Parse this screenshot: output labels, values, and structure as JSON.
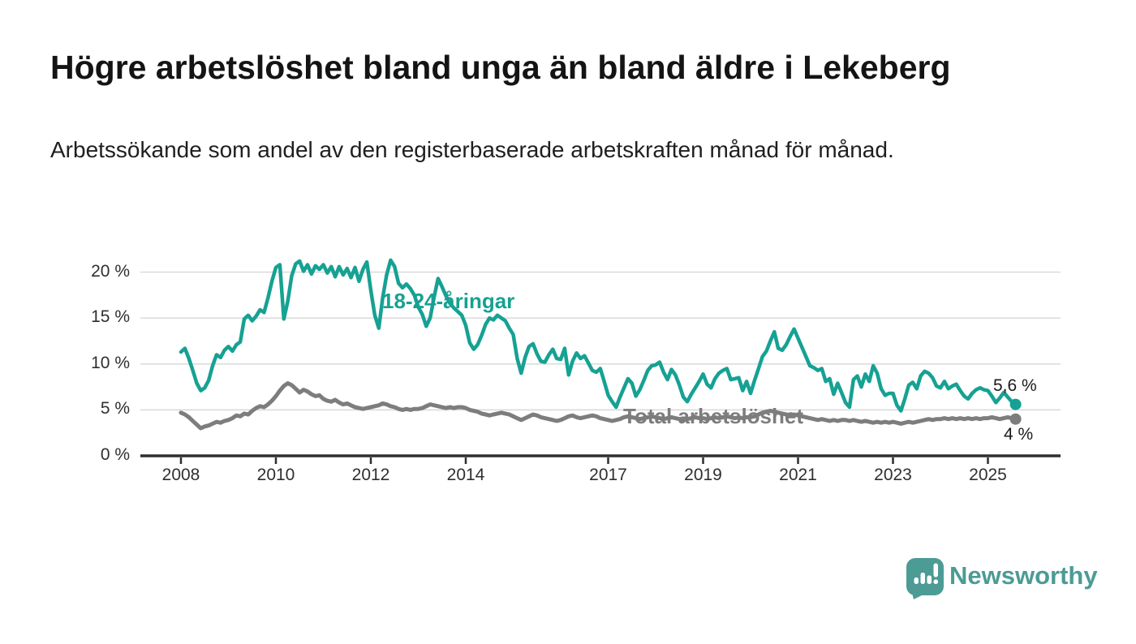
{
  "header": {
    "title": "Högre arbetslöshet bland unga än bland äldre i Lekeberg",
    "subtitle": "Arbetssökande som andel av den registerbaserade arbetskraften månad för månad."
  },
  "chart_data": {
    "type": "line",
    "title": "Högre arbetslöshet bland unga än bland äldre i Lekeberg",
    "x_unit": "month",
    "x_start_year": 2008,
    "points_per_year": 12,
    "x_end_label_period": "2025-08",
    "x_ticks": [
      2008,
      2010,
      2012,
      2014,
      2017,
      2019,
      2021,
      2023,
      2025
    ],
    "x_tick_labels": [
      "2008",
      "2010",
      "2012",
      "2014",
      "2017",
      "2019",
      "2021",
      "2023",
      "2025"
    ],
    "y_ticks": [
      0,
      5,
      10,
      15,
      20
    ],
    "y_tick_labels": [
      "0 %",
      "5 %",
      "10 %",
      "15 %",
      "20 %"
    ],
    "ylim": [
      0,
      22
    ],
    "grid": "horizontal",
    "grid_color": "#d9d9d9",
    "axis_color": "#2e2e2e",
    "legend_position": "inline-labels",
    "series": [
      {
        "name": "18-24-åringar",
        "color": "#16a193",
        "end_label": "5,6 %",
        "end_value": 5.6,
        "values": [
          11.3,
          11.7,
          10.6,
          9.3,
          7.9,
          7.1,
          7.4,
          8.2,
          9.8,
          11.0,
          10.7,
          11.5,
          11.9,
          11.4,
          12.1,
          12.4,
          14.9,
          15.3,
          14.7,
          15.2,
          15.9,
          15.6,
          17.2,
          19.0,
          20.5,
          20.8,
          14.9,
          16.8,
          19.6,
          20.9,
          21.2,
          20.1,
          20.8,
          19.8,
          20.7,
          20.3,
          20.8,
          19.9,
          20.6,
          19.5,
          20.6,
          19.7,
          20.4,
          19.4,
          20.5,
          19.0,
          20.3,
          21.1,
          18.0,
          15.3,
          13.9,
          17.2,
          19.7,
          21.3,
          20.6,
          18.8,
          18.3,
          18.7,
          18.2,
          17.5,
          16.2,
          15.4,
          14.1,
          15.0,
          17.3,
          19.3,
          18.4,
          17.4,
          16.6,
          16.1,
          15.7,
          15.3,
          14.2,
          12.3,
          11.6,
          12.1,
          13.1,
          14.3,
          15.0,
          14.8,
          15.3,
          15.0,
          14.7,
          13.9,
          13.2,
          10.6,
          9.0,
          10.7,
          11.9,
          12.2,
          11.1,
          10.3,
          10.2,
          11.0,
          11.6,
          10.6,
          10.5,
          11.7,
          8.8,
          10.3,
          11.2,
          10.6,
          10.9,
          10.1,
          9.3,
          9.1,
          9.5,
          8.1,
          6.6,
          5.9,
          5.3,
          6.4,
          7.4,
          8.4,
          7.9,
          6.5,
          7.2,
          8.2,
          9.3,
          9.8,
          9.9,
          10.2,
          9.1,
          8.3,
          9.4,
          8.8,
          7.7,
          6.4,
          5.9,
          6.7,
          7.4,
          8.1,
          8.9,
          7.8,
          7.4,
          8.4,
          9.0,
          9.3,
          9.5,
          8.3,
          8.4,
          8.5,
          7.1,
          8.1,
          6.8,
          8.2,
          9.5,
          10.8,
          11.4,
          12.5,
          13.5,
          11.7,
          11.5,
          12.1,
          13.0,
          13.8,
          12.8,
          11.8,
          10.8,
          9.8,
          9.6,
          9.3,
          9.5,
          8.1,
          8.4,
          6.7,
          7.9,
          6.9,
          5.8,
          5.3,
          8.3,
          8.7,
          7.5,
          8.9,
          8.1,
          9.8,
          9.0,
          7.3,
          6.6,
          6.8,
          6.8,
          5.5,
          4.9,
          6.2,
          7.7,
          8.0,
          7.3,
          8.7,
          9.2,
          9.0,
          8.5,
          7.6,
          7.4,
          8.1,
          7.3,
          7.6,
          7.8,
          7.1,
          6.5,
          6.2,
          6.8,
          7.2,
          7.4,
          7.2,
          7.1,
          6.5,
          5.8,
          6.3,
          6.9,
          6.4,
          5.9,
          5.6
        ]
      },
      {
        "name": "Total arbetslöshet",
        "color": "#7d7d7d",
        "end_label": "4 %",
        "end_value": 4.0,
        "values": [
          4.7,
          4.5,
          4.2,
          3.8,
          3.4,
          3.0,
          3.2,
          3.3,
          3.5,
          3.7,
          3.6,
          3.8,
          3.9,
          4.1,
          4.4,
          4.3,
          4.6,
          4.5,
          4.9,
          5.2,
          5.4,
          5.3,
          5.6,
          6.0,
          6.5,
          7.1,
          7.6,
          7.9,
          7.7,
          7.3,
          6.9,
          7.2,
          7.0,
          6.7,
          6.5,
          6.6,
          6.2,
          6.0,
          5.9,
          6.1,
          5.8,
          5.6,
          5.7,
          5.5,
          5.3,
          5.2,
          5.1,
          5.2,
          5.3,
          5.4,
          5.5,
          5.7,
          5.6,
          5.4,
          5.3,
          5.1,
          5.0,
          5.1,
          5.0,
          5.1,
          5.1,
          5.2,
          5.4,
          5.6,
          5.5,
          5.4,
          5.3,
          5.2,
          5.3,
          5.2,
          5.3,
          5.3,
          5.2,
          5.0,
          4.9,
          4.8,
          4.6,
          4.5,
          4.4,
          4.5,
          4.6,
          4.7,
          4.6,
          4.5,
          4.3,
          4.1,
          3.9,
          4.1,
          4.3,
          4.5,
          4.4,
          4.2,
          4.1,
          4.0,
          3.9,
          3.8,
          3.9,
          4.1,
          4.3,
          4.4,
          4.2,
          4.1,
          4.2,
          4.3,
          4.4,
          4.3,
          4.1,
          4.0,
          3.9,
          3.8,
          3.9,
          4.0,
          4.2,
          4.3,
          4.2,
          4.1,
          4.0,
          4.1,
          4.2,
          4.3,
          4.2,
          4.1,
          4.0,
          4.1,
          4.2,
          4.1,
          4.0,
          3.9,
          4.0,
          4.1,
          4.2,
          4.1,
          4.1,
          4.0,
          4.1,
          4.2,
          4.1,
          4.2,
          4.3,
          4.2,
          4.1,
          4.2,
          4.1,
          4.2,
          4.2,
          4.3,
          4.5,
          4.7,
          4.8,
          4.9,
          4.8,
          4.7,
          4.6,
          4.5,
          4.4,
          4.5,
          4.4,
          4.3,
          4.2,
          4.1,
          4.0,
          3.9,
          4.0,
          3.9,
          3.8,
          3.9,
          3.8,
          3.9,
          3.9,
          3.8,
          3.9,
          3.8,
          3.7,
          3.8,
          3.7,
          3.6,
          3.7,
          3.6,
          3.7,
          3.6,
          3.7,
          3.6,
          3.5,
          3.6,
          3.7,
          3.6,
          3.7,
          3.8,
          3.9,
          4.0,
          3.9,
          4.0,
          4.0,
          4.1,
          4.0,
          4.1,
          4.0,
          4.1,
          4.0,
          4.1,
          4.0,
          4.1,
          4.0,
          4.1,
          4.1,
          4.2,
          4.1,
          4.0,
          4.1,
          4.2,
          4.1,
          4.0
        ]
      }
    ]
  },
  "footer": {
    "brand": "Newsworthy",
    "logo_icon": "speech-bubble-bar-chart-icon",
    "brand_color": "#4c9b95"
  }
}
